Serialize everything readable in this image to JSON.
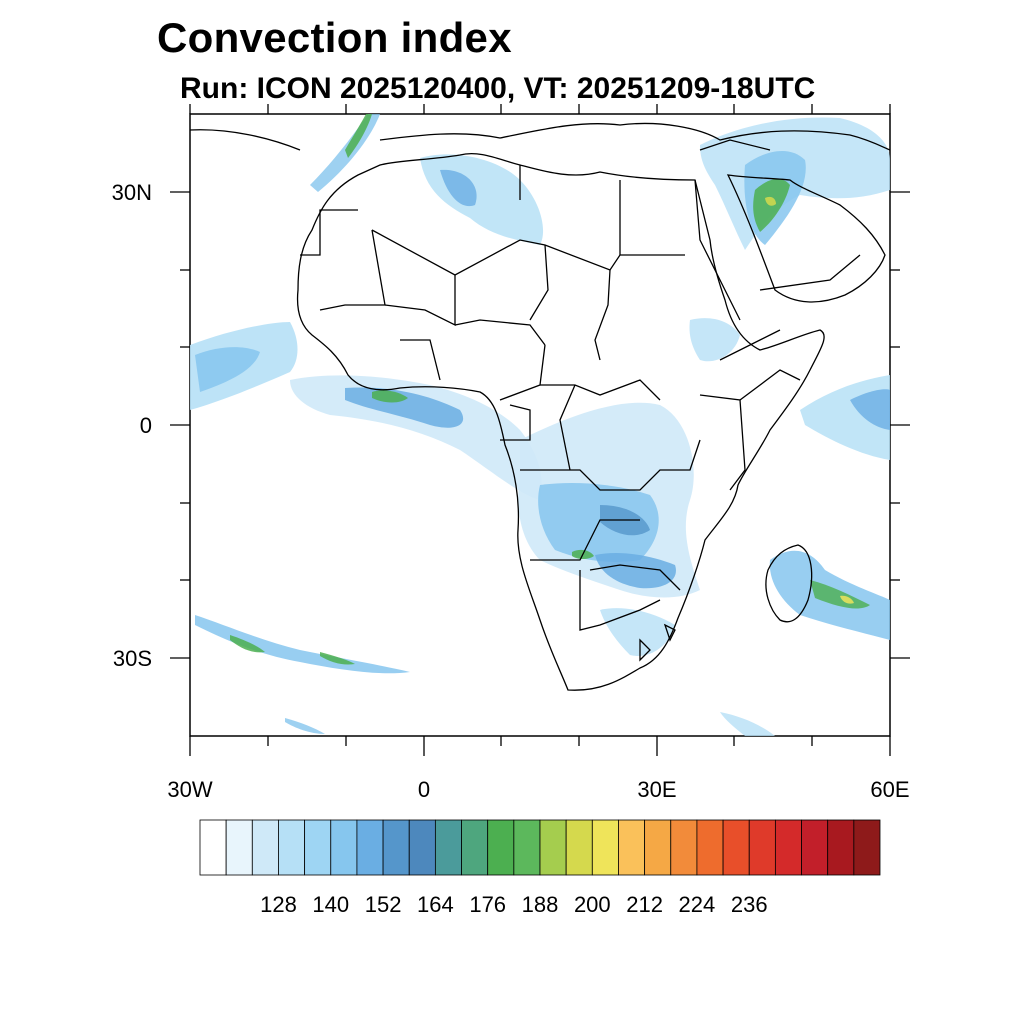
{
  "title": "Convection index",
  "subtitle": "Run: ICON 2025120400,  VT: 20251209-18UTC",
  "map": {
    "projection": "cylindrical-equidistant",
    "lon_range": [
      -30,
      60
    ],
    "lat_range": [
      -40,
      40
    ],
    "lon_tick_labels": [
      {
        "lon": -30,
        "text": "30W"
      },
      {
        "lon": 0,
        "text": "0"
      },
      {
        "lon": 30,
        "text": "30E"
      },
      {
        "lon": 60,
        "text": "60E"
      }
    ],
    "lat_tick_labels": [
      {
        "lat": 30,
        "text": "30N"
      },
      {
        "lat": 0,
        "text": "0"
      },
      {
        "lat": -30,
        "text": "30S"
      }
    ],
    "lon_minor_ticks": [
      -20,
      -10,
      10,
      20,
      40,
      50
    ],
    "lat_minor_ticks": [
      20,
      10,
      -10,
      -20
    ],
    "field_regions": [
      {
        "name": "west-african-itcz-band",
        "level": 3
      },
      {
        "name": "congo-basin",
        "level": 3
      },
      {
        "name": "southern-africa-belt",
        "level": 3
      },
      {
        "name": "madagascar-indian-ocean",
        "level": 4
      },
      {
        "name": "north-african-trough",
        "level": 2
      },
      {
        "name": "arabian-peninsula",
        "level": 4
      },
      {
        "name": "southeast-atlantic-streak",
        "level": 3
      }
    ]
  },
  "colorbar": {
    "colors": [
      "#ffffff",
      "#e8f5fc",
      "#cfe9f8",
      "#b6e0f6",
      "#9ed5f3",
      "#86c6ee",
      "#6aaee3",
      "#5596cb",
      "#4d88bd",
      "#4b9b9b",
      "#4ea67e",
      "#4caf50",
      "#5cb85c",
      "#a5cd4e",
      "#d5d94d",
      "#efe45a",
      "#fac15a",
      "#f5a845",
      "#f28b3a",
      "#ee6c2d",
      "#e84f2a",
      "#df3a2a",
      "#d42a2a",
      "#c21f2a",
      "#a8191f",
      "#8e1a1a"
    ],
    "tick_labels": [
      "128",
      "140",
      "152",
      "164",
      "176",
      "188",
      "200",
      "212",
      "224",
      "236"
    ]
  }
}
